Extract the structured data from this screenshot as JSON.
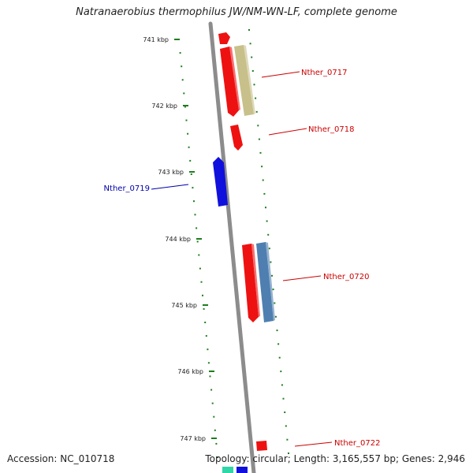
{
  "title": "Natranaerobius thermophilus JW/NM-WN-LF, complete genome",
  "accession_text": "Accession: NC_010718",
  "genome_info_text": "Topology: circular; Length: 3,165,557 bp; Genes: 2,946",
  "colors": {
    "backbone": "#8c8c8c",
    "tick": "#1e7d1e",
    "forward_gene": "#ee1111",
    "reverse_gene": "#1111dd",
    "forward_label": "#cc0000",
    "reverse_label": "#0000aa",
    "olive_feature": "#c8c08a",
    "steel_feature": "#4f7fb0",
    "teal_feature": "#2ed6a8"
  },
  "ticks": [
    {
      "label": "741 kbp"
    },
    {
      "label": "742 kbp"
    },
    {
      "label": "743 kbp"
    },
    {
      "label": "744 kbp"
    },
    {
      "label": "745 kbp"
    },
    {
      "label": "746 kbp"
    },
    {
      "label": "747 kbp"
    }
  ],
  "gene_labels": [
    {
      "text": "Nther_0717",
      "strand": "forward"
    },
    {
      "text": "Nther_0718",
      "strand": "forward"
    },
    {
      "text": "Nther_0719",
      "strand": "reverse"
    },
    {
      "text": "Nther_0720",
      "strand": "forward"
    },
    {
      "text": "Nther_0722",
      "strand": "forward"
    }
  ]
}
